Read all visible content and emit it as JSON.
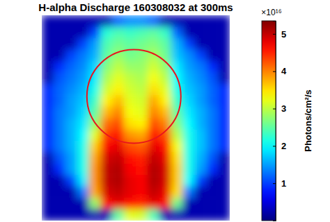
{
  "chart_data": {
    "type": "heatmap",
    "title": "H-alpha Discharge 160308032 at 300ms",
    "tick_labels": false,
    "color": "jet",
    "cells": [
      [
        0.25,
        0.25,
        0.25,
        0.25,
        0.25,
        0.25,
        1.2,
        1.4,
        1.4,
        1.2,
        0.25,
        0.25,
        0.25,
        0.25,
        0.25,
        0.25
      ],
      [
        0.25,
        0.25,
        0.25,
        0.25,
        1.0,
        2.2,
        2.4,
        2.3,
        2.4,
        2.5,
        2.3,
        1.2,
        0.25,
        0.25,
        0.25,
        0.25
      ],
      [
        0.25,
        0.25,
        0.25,
        1.0,
        1.5,
        2.4,
        2.6,
        2.5,
        2.6,
        2.7,
        2.5,
        1.6,
        1.0,
        0.25,
        0.25,
        0.25
      ],
      [
        0.25,
        0.25,
        1.0,
        1.3,
        1.6,
        2.5,
        2.8,
        2.6,
        2.7,
        2.9,
        2.6,
        1.7,
        1.4,
        1.0,
        0.25,
        0.25
      ],
      [
        0.25,
        0.9,
        1.2,
        1.4,
        1.8,
        2.7,
        3.0,
        2.8,
        2.8,
        3.1,
        2.8,
        1.9,
        1.5,
        1.3,
        0.9,
        0.25
      ],
      [
        0.25,
        1.1,
        1.3,
        1.5,
        1.9,
        2.9,
        3.2,
        3.0,
        2.9,
        3.3,
        3.0,
        2.0,
        1.6,
        1.4,
        1.1,
        0.25
      ],
      [
        0.9,
        1.2,
        1.4,
        1.6,
        2.1,
        3.1,
        3.4,
        3.1,
        3.0,
        3.5,
        3.2,
        2.1,
        1.7,
        1.5,
        1.2,
        0.9
      ],
      [
        0.9,
        1.2,
        1.5,
        1.7,
        2.3,
        3.4,
        3.7,
        3.2,
        3.1,
        3.8,
        3.4,
        2.3,
        1.8,
        1.5,
        1.2,
        0.9
      ],
      [
        0.9,
        1.3,
        1.5,
        1.8,
        2.5,
        3.7,
        4.0,
        3.3,
        3.2,
        4.0,
        3.7,
        2.5,
        1.9,
        1.6,
        1.3,
        0.9
      ],
      [
        0.9,
        1.3,
        1.6,
        1.9,
        2.8,
        4.1,
        4.3,
        3.5,
        3.4,
        4.3,
        4.0,
        2.7,
        2.0,
        1.6,
        1.3,
        0.9
      ],
      [
        0.9,
        1.3,
        1.6,
        2.0,
        3.2,
        4.4,
        4.6,
        3.9,
        3.8,
        4.6,
        4.3,
        3.0,
        2.1,
        1.7,
        1.3,
        0.9
      ],
      [
        0.9,
        1.3,
        1.6,
        2.1,
        3.6,
        4.7,
        4.8,
        4.3,
        4.2,
        4.8,
        4.6,
        3.3,
        2.1,
        1.7,
        1.3,
        0.9
      ],
      [
        0.25,
        1.1,
        1.5,
        2.1,
        3.8,
        4.9,
        5.0,
        4.6,
        4.5,
        5.0,
        4.8,
        3.5,
        2.1,
        1.6,
        1.1,
        0.25
      ],
      [
        0.25,
        0.9,
        1.5,
        2.1,
        3.9,
        5.0,
        5.1,
        4.7,
        4.6,
        5.1,
        4.9,
        3.6,
        2.1,
        1.5,
        0.9,
        0.25
      ],
      [
        0.25,
        0.25,
        1.0,
        1.9,
        3.9,
        5.0,
        5.1,
        4.8,
        4.7,
        5.1,
        4.9,
        3.6,
        2.0,
        1.0,
        0.25,
        0.25
      ],
      [
        0.25,
        0.25,
        0.25,
        1.3,
        3.8,
        4.9,
        5.0,
        4.8,
        4.7,
        5.0,
        4.8,
        3.5,
        1.3,
        0.25,
        0.25,
        0.25
      ],
      [
        0.25,
        0.25,
        0.25,
        0.25,
        2.8,
        4.6,
        4.8,
        4.6,
        4.5,
        4.8,
        4.6,
        2.6,
        0.25,
        0.25,
        0.25,
        0.25
      ],
      [
        0.25,
        0.25,
        0.25,
        0.25,
        0.25,
        0.25,
        2.5,
        3.2,
        3.1,
        2.4,
        0.25,
        0.25,
        0.25,
        0.25,
        0.25,
        0.25
      ]
    ],
    "colorbar": {
      "label": "Photons/cm²/s",
      "multiplier": "×10¹⁶",
      "range": [
        0,
        5.35
      ],
      "ticks": [
        1,
        2,
        3,
        4,
        5
      ]
    }
  }
}
